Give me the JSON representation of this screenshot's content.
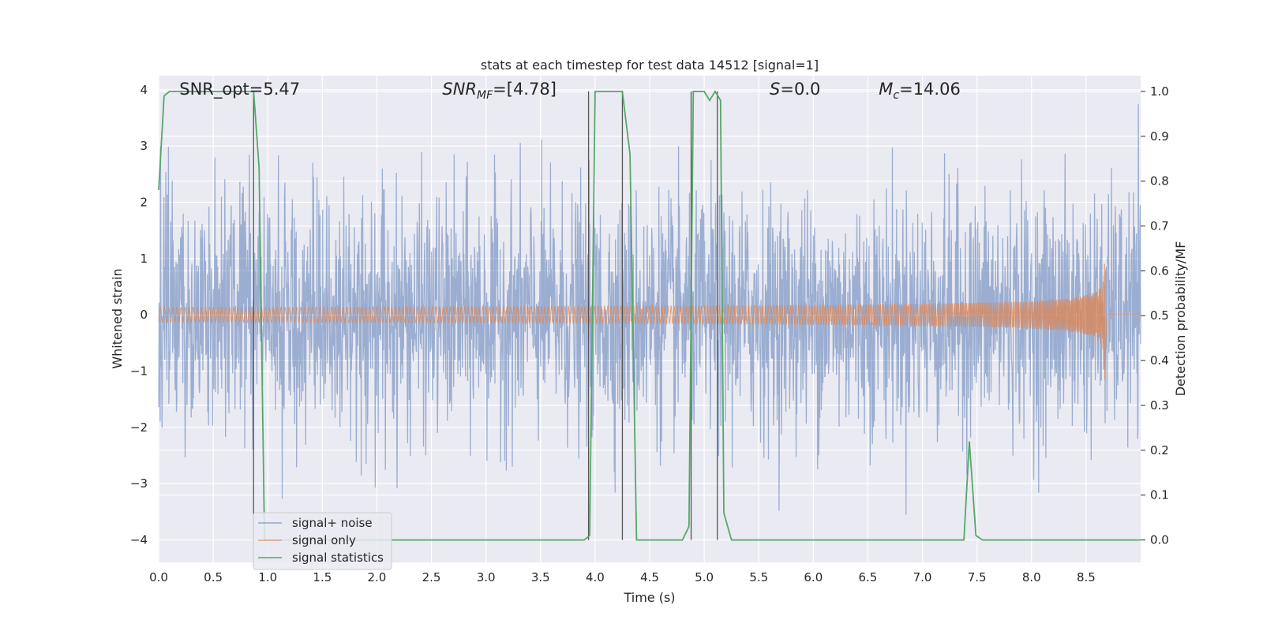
{
  "chart_data": {
    "type": "line",
    "title": "stats at each timestep for test data 14512 [signal=1]",
    "xlabel": "Time (s)",
    "ylabel_left": "Whitened strain",
    "ylabel_right": "Detection probability/MF",
    "xlim": [
      0.0,
      9.0
    ],
    "ylim_left": [
      -4.4,
      4.25
    ],
    "ylim_right": [
      -0.05,
      1.035
    ],
    "x_ticks": [
      "0.0",
      "0.5",
      "1.0",
      "1.5",
      "2.0",
      "2.5",
      "3.0",
      "3.5",
      "4.0",
      "4.5",
      "5.0",
      "5.5",
      "6.0",
      "6.5",
      "7.0",
      "7.5",
      "8.0",
      "8.5"
    ],
    "y_ticks_left": [
      "4",
      "3",
      "2",
      "1",
      "0",
      "−1",
      "−2",
      "−3",
      "−4"
    ],
    "y_ticks_right": [
      "1.0",
      "0.9",
      "0.8",
      "0.7",
      "0.6",
      "0.5",
      "0.4",
      "0.3",
      "0.2",
      "0.1",
      "0.0"
    ],
    "grid": true,
    "legend_placement": "lower left",
    "annotations": [
      {
        "id": "snr-opt",
        "text": "SNR_opt=5.47",
        "x": 0.19,
        "y": 4.0
      },
      {
        "id": "snr-mf",
        "label": "SNR",
        "sub": "MF",
        "value": "=[4.78]",
        "x": 2.6,
        "y": 4.0
      },
      {
        "id": "s-stat",
        "label": "S",
        "value": "=0.0",
        "x": 5.6,
        "y": 4.0
      },
      {
        "id": "mc",
        "label": "M",
        "sub": "c",
        "value": "=14.06",
        "x": 6.6,
        "y": 4.0
      }
    ],
    "series": [
      {
        "name": "signal+ noise",
        "color": "#4c72b0",
        "axis": "left",
        "description": "noisy whitened strain, std ~1.0, spanning roughly -4 to +4"
      },
      {
        "name": "signal only",
        "color": "#dd8452",
        "axis": "left",
        "merger_time": 8.67,
        "peak_amplitude": 0.9,
        "description": "chirp signal growing toward merger near 8.67 s"
      },
      {
        "name": "signal statistics",
        "color": "#55a868",
        "axis": "right",
        "x": [
          0.0,
          0.05,
          0.1,
          0.15,
          0.2,
          0.3,
          0.4,
          0.5,
          0.6,
          0.7,
          0.8,
          0.87,
          0.92,
          0.97,
          1.0,
          1.1,
          1.5,
          2.0,
          2.5,
          3.0,
          3.5,
          3.9,
          3.95,
          4.0,
          4.1,
          4.2,
          4.25,
          4.32,
          4.38,
          4.4,
          4.5,
          4.6,
          4.7,
          4.8,
          4.86,
          4.9,
          4.95,
          5.0,
          5.05,
          5.1,
          5.15,
          5.18,
          5.25,
          5.3,
          5.5,
          6.0,
          6.5,
          7.0,
          7.3,
          7.38,
          7.43,
          7.49,
          7.55,
          7.6,
          8.0,
          8.5,
          9.0
        ],
        "y": [
          0.78,
          0.99,
          1.0,
          1.0,
          1.0,
          1.0,
          1.0,
          1.0,
          1.0,
          1.0,
          1.0,
          1.0,
          0.83,
          0.0,
          0.0,
          0.0,
          0.0,
          0.0,
          0.0,
          0.0,
          0.0,
          0.0,
          0.01,
          1.0,
          1.0,
          1.0,
          1.0,
          0.86,
          0.0,
          0.0,
          0.0,
          0.0,
          0.0,
          0.0,
          0.03,
          1.0,
          1.0,
          1.0,
          0.98,
          1.0,
          0.98,
          0.06,
          0.0,
          0.0,
          0.0,
          0.0,
          0.0,
          0.0,
          0.0,
          0.0,
          0.22,
          0.01,
          0.0,
          0.0,
          0.0,
          0.0,
          0.0
        ]
      }
    ],
    "vertical_markers_x": [
      0.87,
      3.94,
      4.25,
      4.88,
      5.12
    ],
    "vertical_marker_color": "#555555"
  }
}
